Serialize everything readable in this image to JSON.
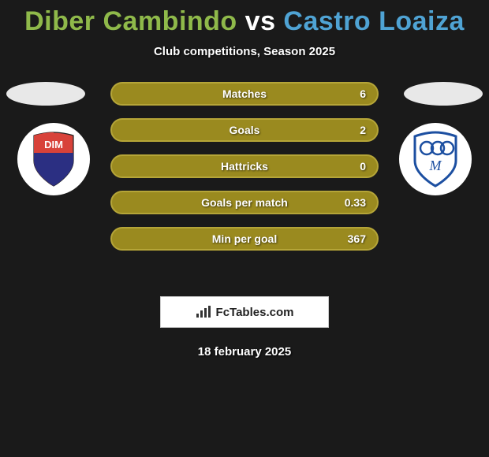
{
  "title": {
    "player1": "Diber Cambindo",
    "player2": "Castro Loaiza",
    "player1_color": "#8fb94a",
    "player2_color": "#4fa3d4",
    "vs_color": "#ffffff"
  },
  "subtitle": "Club competitions, Season 2025",
  "stats": [
    {
      "label": "Matches",
      "value": "6"
    },
    {
      "label": "Goals",
      "value": "2"
    },
    {
      "label": "Hattricks",
      "value": "0"
    },
    {
      "label": "Goals per match",
      "value": "0.33"
    },
    {
      "label": "Min per goal",
      "value": "367"
    }
  ],
  "bar_style": {
    "fill": "#9a8a1f",
    "border": "#b5a538",
    "text_color": "#ffffff"
  },
  "badges": {
    "left": {
      "name": "DIM",
      "shield_colors": {
        "top": "#d8423a",
        "bottom": "#2b2f82",
        "text": "#ffffff"
      }
    },
    "right": {
      "name": "Millonarios",
      "shield_colors": {
        "main": "#1c4fa1",
        "fill": "#ffffff",
        "accent": "#1c4fa1"
      }
    }
  },
  "brand": "FcTables.com",
  "date": "18 february 2025",
  "background_color": "#1a1a1a"
}
